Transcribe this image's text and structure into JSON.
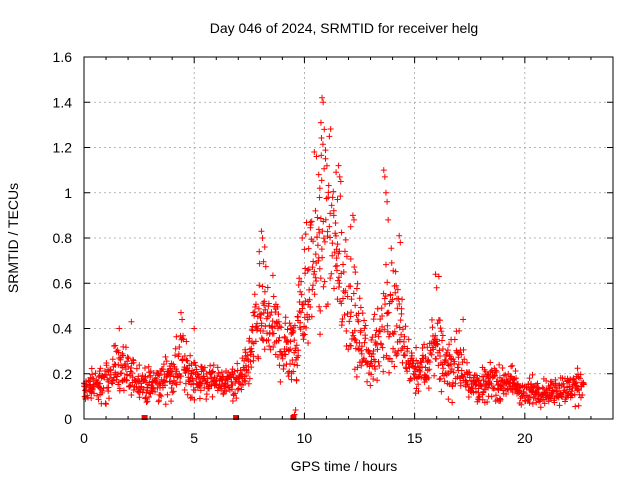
{
  "chart_data": {
    "type": "scatter",
    "title": "Day 046 of 2024, SRMTID for receiver helg",
    "xlabel": "GPS time / hours",
    "ylabel": "SRMTID / TECUs",
    "xlim": [
      0,
      24
    ],
    "ylim": [
      0,
      1.6
    ],
    "x_ticks": [
      "0",
      "5",
      "10",
      "15",
      "20"
    ],
    "x_tick_values": [
      0,
      5,
      10,
      15,
      20
    ],
    "y_ticks": [
      "0",
      "0.2",
      "0.4",
      "0.6",
      "0.8",
      "1",
      "1.2",
      "1.4",
      "1.6"
    ],
    "y_tick_values": [
      0,
      0.2,
      0.4,
      0.6,
      0.8,
      1.0,
      1.2,
      1.4,
      1.6
    ],
    "grid": true,
    "marker": "plus",
    "color": "#ff0000",
    "series": [
      {
        "name": "SRMTID",
        "profile": [
          [
            0.0,
            0.13,
            0.06
          ],
          [
            1.0,
            0.16,
            0.08
          ],
          [
            1.5,
            0.24,
            0.1
          ],
          [
            2.0,
            0.18,
            0.08
          ],
          [
            2.5,
            0.17,
            0.08
          ],
          [
            3.0,
            0.14,
            0.06
          ],
          [
            3.5,
            0.16,
            0.07
          ],
          [
            4.0,
            0.2,
            0.09
          ],
          [
            4.4,
            0.26,
            0.12
          ],
          [
            5.0,
            0.18,
            0.08
          ],
          [
            6.0,
            0.16,
            0.06
          ],
          [
            7.0,
            0.16,
            0.06
          ],
          [
            7.5,
            0.26,
            0.1
          ],
          [
            8.0,
            0.45,
            0.22
          ],
          [
            8.5,
            0.45,
            0.18
          ],
          [
            9.0,
            0.3,
            0.12
          ],
          [
            9.5,
            0.32,
            0.15
          ],
          [
            10.0,
            0.55,
            0.25
          ],
          [
            10.5,
            0.7,
            0.3
          ],
          [
            11.0,
            0.9,
            0.4
          ],
          [
            11.5,
            0.65,
            0.28
          ],
          [
            12.0,
            0.55,
            0.25
          ],
          [
            12.5,
            0.35,
            0.15
          ],
          [
            13.0,
            0.25,
            0.1
          ],
          [
            13.5,
            0.4,
            0.2
          ],
          [
            14.0,
            0.5,
            0.3
          ],
          [
            14.5,
            0.3,
            0.15
          ],
          [
            15.0,
            0.2,
            0.08
          ],
          [
            15.5,
            0.22,
            0.1
          ],
          [
            16.0,
            0.35,
            0.18
          ],
          [
            16.5,
            0.22,
            0.1
          ],
          [
            17.0,
            0.25,
            0.12
          ],
          [
            17.5,
            0.18,
            0.08
          ],
          [
            18.0,
            0.14,
            0.06
          ],
          [
            18.5,
            0.17,
            0.07
          ],
          [
            19.0,
            0.15,
            0.06
          ],
          [
            19.5,
            0.16,
            0.07
          ],
          [
            20.0,
            0.1,
            0.05
          ],
          [
            20.5,
            0.13,
            0.06
          ],
          [
            21.0,
            0.12,
            0.05
          ],
          [
            21.5,
            0.13,
            0.06
          ],
          [
            22.0,
            0.13,
            0.06
          ],
          [
            22.7,
            0.15,
            0.07
          ]
        ],
        "points": [
          [
            10.8,
            1.42
          ],
          [
            10.85,
            1.4
          ],
          [
            10.75,
            1.31
          ],
          [
            10.9,
            1.28
          ],
          [
            10.45,
            1.18
          ],
          [
            10.55,
            1.16
          ],
          [
            10.65,
            1.08
          ],
          [
            10.7,
            1.02
          ],
          [
            11.55,
            1.12
          ],
          [
            11.6,
            1.07
          ],
          [
            11.65,
            1.05
          ],
          [
            11.5,
            0.97
          ],
          [
            13.6,
            1.1
          ],
          [
            13.65,
            1.07
          ],
          [
            13.7,
            1.0
          ],
          [
            13.75,
            0.96
          ],
          [
            13.8,
            0.88
          ],
          [
            12.2,
            0.9
          ],
          [
            12.25,
            0.88
          ],
          [
            12.1,
            0.85
          ],
          [
            8.05,
            0.83
          ],
          [
            8.1,
            0.8
          ],
          [
            8.2,
            0.76
          ],
          [
            7.95,
            0.74
          ],
          [
            9.9,
            0.8
          ],
          [
            10.0,
            0.75
          ],
          [
            14.3,
            0.81
          ],
          [
            14.35,
            0.78
          ],
          [
            15.95,
            0.64
          ],
          [
            16.1,
            0.63
          ],
          [
            16.0,
            0.58
          ],
          [
            4.4,
            0.47
          ],
          [
            4.45,
            0.44
          ],
          [
            1.6,
            0.4
          ],
          [
            2.15,
            0.43
          ],
          [
            5.0,
            0.4
          ],
          [
            17.2,
            0.44
          ],
          [
            9.6,
            0.04
          ],
          [
            9.55,
            0.02
          ]
        ]
      }
    ],
    "gap_markers_x": [
      2.75,
      6.9,
      9.5
    ]
  }
}
